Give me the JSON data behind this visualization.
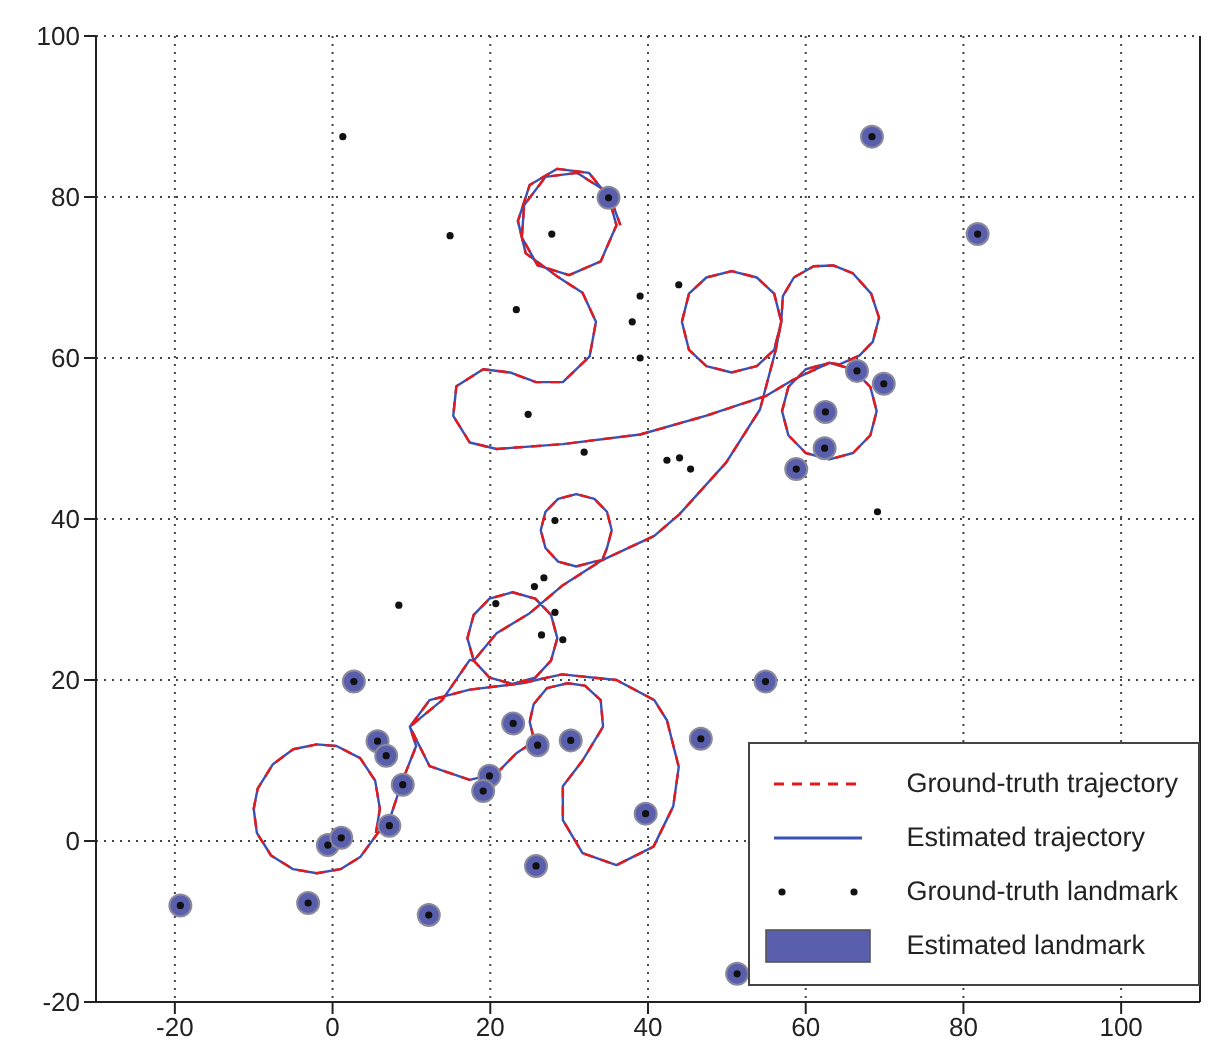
{
  "chart_data": {
    "type": "line",
    "xlim": [
      -30,
      110
    ],
    "ylim": [
      -20,
      100
    ],
    "xticks": [
      -20,
      0,
      20,
      40,
      60,
      80,
      100
    ],
    "yticks": [
      -20,
      0,
      20,
      40,
      60,
      80,
      100
    ],
    "grid": true,
    "legend": "bottom right",
    "series": [
      {
        "name": "Ground-truth trajectory",
        "color": "#e31a1c",
        "line_style": "dashed",
        "x": [
          5.5,
          6,
          5.4,
          3.5,
          0.5,
          -2,
          -5,
          -7.6,
          -9.5,
          -10,
          -9.6,
          -7.8,
          -5,
          -2,
          1,
          3.5,
          5.6,
          7.2,
          8.9,
          10.6,
          9.8,
          12.3,
          17.4,
          24,
          29.1,
          36,
          40.8,
          42.4,
          43.9,
          43.2,
          40.7,
          36,
          31.7,
          29.2,
          29.2,
          31.7,
          34.3,
          34,
          32,
          29.8,
          27.2,
          25.5,
          25,
          25.6,
          23.3,
          20.8,
          17.4,
          12.3,
          9.8,
          13.9,
          17.4,
          17.9,
          19.9,
          22.8,
          25.7,
          27.7,
          28.5,
          27.7,
          25.7,
          22.8,
          19.9,
          17.9,
          17.1,
          17.9,
          20.8,
          25,
          29.1,
          34.2,
          34.8,
          35.4,
          34.8,
          33.2,
          30.9,
          28.6,
          27,
          26.4,
          27,
          28.6,
          30.9,
          33.2,
          34.2,
          40.8,
          44,
          49.9,
          54.2,
          56.2,
          56.9,
          56,
          53.8,
          50.6,
          47.4,
          45.2,
          44.3,
          45.2,
          47.4,
          50.6,
          53.8,
          56,
          56.9,
          57.1,
          58.5,
          61,
          63.5,
          66,
          68.3,
          69.3,
          68.5,
          66.8,
          64.3,
          63,
          66,
          68.2,
          69,
          68.2,
          66,
          63,
          60,
          57.8,
          57,
          57.8,
          60,
          63,
          58.4,
          55,
          47.3,
          39,
          29.2,
          20.8,
          17.4,
          15.3,
          15.7,
          19.1,
          22.5,
          25.8,
          29.2,
          32.6,
          33.4,
          31.7,
          28.4,
          24.5,
          23.5,
          25,
          28.5,
          32.5,
          35,
          36,
          34,
          30,
          26,
          24,
          24.3,
          27,
          31,
          35,
          36.5
        ],
        "values": [
          1,
          4,
          7.5,
          10.3,
          11.8,
          12,
          11.4,
          9.5,
          6.5,
          4,
          1,
          -1.8,
          -3.5,
          -4,
          -3.5,
          -2,
          0.8,
          2.6,
          7.6,
          11.8,
          14.2,
          17.5,
          18.8,
          19.6,
          20.7,
          20,
          17.5,
          15,
          9.2,
          4.3,
          -0.7,
          -3,
          -1.5,
          2.6,
          6.8,
          10,
          14.2,
          17.5,
          19.3,
          19.6,
          19,
          17,
          14.8,
          12.4,
          10.9,
          8.4,
          7.6,
          9.3,
          14.2,
          17.5,
          22.5,
          22.4,
          20.3,
          19.5,
          20.3,
          22.4,
          25.2,
          28.1,
          30.1,
          30.9,
          30.1,
          28.1,
          25.2,
          22.4,
          25.8,
          28.3,
          31.7,
          34.9,
          36.4,
          38.6,
          40.9,
          42.5,
          43.1,
          42.5,
          40.9,
          38.6,
          36.4,
          34.7,
          34.1,
          34.7,
          34.9,
          37.9,
          40.6,
          47,
          53.6,
          61,
          64.5,
          68,
          70,
          70.8,
          70,
          68,
          64.5,
          61,
          59,
          58.2,
          59,
          61,
          64.5,
          67.7,
          70,
          71.4,
          71.5,
          70.5,
          68,
          65,
          62,
          60.3,
          59.2,
          59.4,
          58.6,
          56.4,
          53.4,
          50.4,
          48.2,
          47.4,
          48.2,
          50.4,
          53.4,
          56.4,
          58.6,
          59.4,
          57.3,
          55.3,
          52.8,
          50.5,
          49.3,
          48.7,
          49.5,
          52.8,
          56.5,
          58.6,
          58.2,
          57,
          57,
          60.2,
          64.5,
          68.1,
          70.2,
          73,
          77,
          81.5,
          83.5,
          83,
          80,
          76.5,
          72,
          70.3,
          71.5,
          75,
          79,
          82.5,
          83,
          80.5,
          76.5
        ]
      },
      {
        "name": "Estimated trajectory",
        "color": "#3a50b5",
        "line_style": "solid",
        "x": [
          5.5,
          6,
          5.4,
          3.5,
          0.5,
          -2,
          -5,
          -7.6,
          -9.5,
          -10,
          -9.6,
          -7.8,
          -5,
          -2,
          1,
          3.5,
          5.6,
          7.2,
          8.9,
          10.6,
          9.8,
          12.3,
          17.4,
          24,
          29.1,
          36,
          40.8,
          42.4,
          43.9,
          43.2,
          40.7,
          36,
          31.7,
          29.2,
          29.2,
          31.7,
          34.3,
          34,
          32,
          29.8,
          27.2,
          25.5,
          25,
          25.6,
          23.3,
          20.8,
          17.4,
          12.3,
          9.8,
          13.9,
          17.4,
          17.9,
          19.9,
          22.8,
          25.7,
          27.7,
          28.5,
          27.7,
          25.7,
          22.8,
          19.9,
          17.9,
          17.1,
          17.9,
          20.8,
          25,
          29.1,
          34.2,
          34.8,
          35.4,
          34.8,
          33.2,
          30.9,
          28.6,
          27,
          26.4,
          27,
          28.6,
          30.9,
          33.2,
          34.2,
          40.8,
          44,
          49.9,
          54.2,
          56.2,
          56.9,
          56,
          53.8,
          50.6,
          47.4,
          45.2,
          44.3,
          45.2,
          47.4,
          50.6,
          53.8,
          56,
          56.9,
          57.1,
          58.5,
          61,
          63.5,
          66,
          68.3,
          69.3,
          68.5,
          66.8,
          64.3,
          63,
          66,
          68.2,
          69,
          68.2,
          66,
          63,
          60,
          57.8,
          57,
          57.8,
          60,
          63,
          58.4,
          55,
          47.3,
          39,
          29.2,
          20.8,
          17.4,
          15.3,
          15.7,
          19.1,
          22.5,
          25.8,
          29.2,
          32.6,
          33.4,
          31.7,
          28.4,
          24.5,
          23.5,
          25,
          28.5,
          32.5,
          35,
          36,
          34,
          30,
          26,
          24,
          24.3,
          27,
          31,
          35,
          36.5
        ],
        "values": [
          1,
          4,
          7.5,
          10.3,
          11.8,
          12,
          11.4,
          9.5,
          6.5,
          4,
          1,
          -1.8,
          -3.5,
          -4,
          -3.5,
          -2,
          0.8,
          2.6,
          7.6,
          11.8,
          14.2,
          17.5,
          18.8,
          19.6,
          20.7,
          20,
          17.5,
          15,
          9.2,
          4.3,
          -0.7,
          -3,
          -1.5,
          2.6,
          6.8,
          10,
          14.2,
          17.5,
          19.3,
          19.6,
          19,
          17,
          14.8,
          12.4,
          10.9,
          8.4,
          7.6,
          9.3,
          14.2,
          17.5,
          22.5,
          22.4,
          20.3,
          19.5,
          20.3,
          22.4,
          25.2,
          28.1,
          30.1,
          30.9,
          30.1,
          28.1,
          25.2,
          22.4,
          25.8,
          28.3,
          31.7,
          34.9,
          36.4,
          38.6,
          40.9,
          42.5,
          43.1,
          42.5,
          40.9,
          38.6,
          36.4,
          34.7,
          34.1,
          34.7,
          34.9,
          37.9,
          40.6,
          47,
          53.6,
          61,
          64.5,
          68,
          70,
          70.8,
          70,
          68,
          64.5,
          61,
          59,
          58.2,
          59,
          61,
          64.5,
          67.7,
          70,
          71.4,
          71.5,
          70.5,
          68,
          65,
          62,
          60.3,
          59.2,
          59.4,
          58.6,
          56.4,
          53.4,
          50.4,
          48.2,
          47.4,
          48.2,
          50.4,
          53.4,
          56.4,
          58.6,
          59.4,
          57.3,
          55.3,
          52.8,
          50.5,
          49.3,
          48.7,
          49.5,
          52.8,
          56.5,
          58.6,
          58.2,
          57,
          57,
          60.2,
          64.5,
          68.1,
          70.2,
          73,
          77,
          81.5,
          83.5,
          83,
          80,
          76.5,
          72,
          70.3,
          71.5,
          75,
          79,
          82.5,
          83,
          80.5,
          76.5
        ]
      },
      {
        "name": "Ground-truth landmark",
        "type": "scatter",
        "color": "#111111",
        "marker": "circle",
        "x": [
          1.3,
          68.4,
          81.8,
          14.9,
          27.8,
          35,
          23.3,
          39,
          43.9,
          38,
          39,
          24.8,
          31.9,
          66.5,
          69.9,
          62.5,
          62.4,
          58.8,
          42.4,
          44,
          45.4,
          69.1,
          28.2,
          26.8,
          25.6,
          8.4,
          20.7,
          28.2,
          26.5,
          29.2,
          2.7,
          22.9,
          5.7,
          6.8,
          26,
          30.2,
          8.9,
          19.9,
          19.1,
          7.2,
          -0.6,
          1.1,
          39.7,
          25.8,
          -19.3,
          -3.1,
          12.2,
          54.9,
          46.7,
          51.3
        ],
        "values": [
          87.5,
          87.5,
          75.4,
          75.2,
          75.4,
          79.9,
          66,
          67.7,
          69.1,
          64.5,
          60,
          53,
          48.3,
          58.4,
          56.8,
          53.3,
          48.8,
          46.2,
          47.3,
          47.6,
          46.2,
          40.9,
          39.8,
          32.7,
          31.6,
          29.3,
          29.5,
          28.4,
          25.6,
          25,
          19.8,
          14.6,
          12.4,
          10.6,
          11.9,
          12.5,
          7,
          8.1,
          6.2,
          1.9,
          -0.5,
          0.4,
          3.4,
          -3.1,
          -8,
          -7.7,
          -9.2,
          19.8,
          12.7,
          -16.5
        ]
      },
      {
        "name": "Estimated landmark",
        "type": "scatter",
        "color": "#5a5fad",
        "marker": "circle",
        "x": [
          68.4,
          81.8,
          35,
          66.5,
          69.9,
          62.5,
          62.4,
          58.8,
          2.7,
          22.9,
          5.7,
          6.8,
          26,
          30.2,
          8.9,
          19.9,
          19.1,
          7.2,
          -0.6,
          1.1,
          39.7,
          25.8,
          -19.3,
          -3.1,
          12.2,
          54.9,
          46.7,
          51.3
        ],
        "values": [
          87.5,
          75.4,
          79.9,
          58.4,
          56.8,
          53.3,
          48.8,
          46.2,
          19.8,
          14.6,
          12.4,
          10.6,
          11.9,
          12.5,
          7,
          8.1,
          6.2,
          1.9,
          -0.5,
          0.4,
          3.4,
          -3.1,
          -8,
          -7.7,
          -9.2,
          19.8,
          12.7,
          -16.5
        ]
      }
    ]
  }
}
